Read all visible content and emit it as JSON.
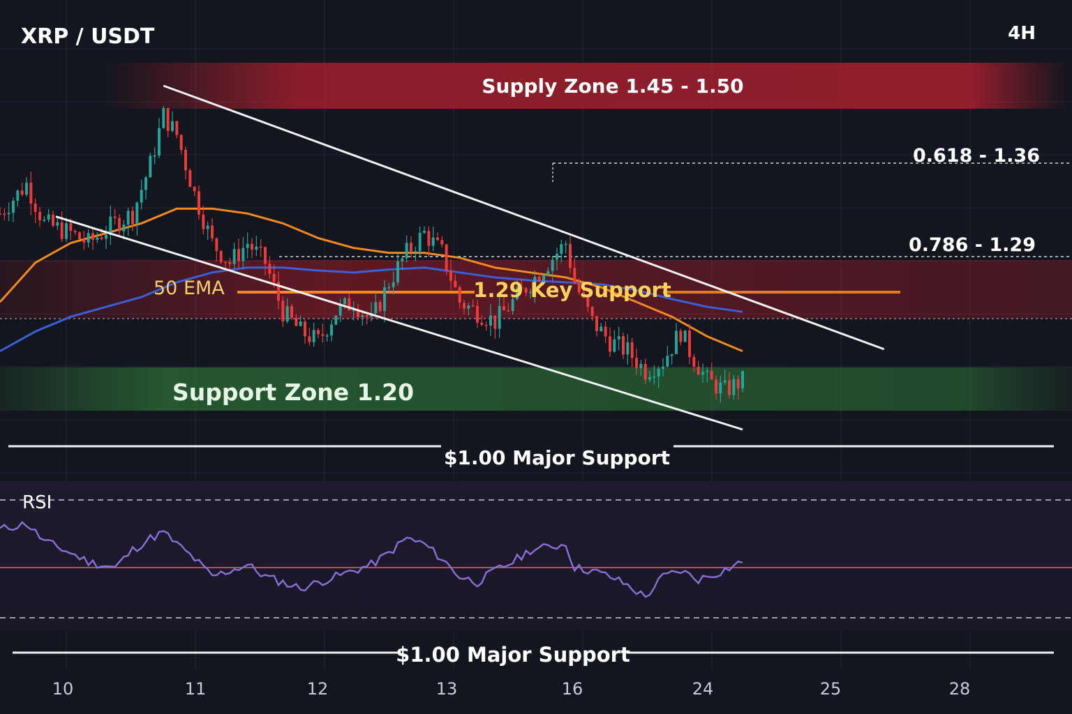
{
  "header": {
    "symbol": "XRP / USDT",
    "timeframe": "4H"
  },
  "colors": {
    "background": "#14161f",
    "bull_candle": "#26a69a",
    "bear_candle": "#ef3b3b",
    "ema_orange": "#f28a1d",
    "ema_blue": "#3b5fd9",
    "supply_zone": "#b0202e",
    "support_zone": "#2f7a3a",
    "rsi_line": "#8a6fd6",
    "rsi_mid": "#c5455a"
  },
  "annotations": {
    "supply_zone": "Supply Zone 1.45 - 1.50",
    "fib_618": "0.618 - 1.36",
    "fib_786": "0.786 - 1.29",
    "ema_label": "50 EMA",
    "key_support": "1.29 Key Support",
    "support_zone": "Support Zone  1.20",
    "major_support": "$1.00 Major Support",
    "rsi_title": "RSI",
    "rsi_major_support": "$1.00 Major Support"
  },
  "chart_data": {
    "type": "candlestick",
    "title": "XRP / USDT",
    "timeframe": "4H",
    "x_tick_labels": [
      "10",
      "11",
      "12",
      "13",
      "16",
      "24",
      "25",
      "28"
    ],
    "levels": {
      "supply_zone": [
        1.45,
        1.5
      ],
      "fib_0_618": 1.36,
      "fib_0_786": 1.29,
      "key_support": 1.29,
      "support_zone": 1.2,
      "major_support": 1.0
    },
    "ylim": [
      1.0,
      1.52
    ],
    "close_path": [
      [
        0,
        1.37
      ],
      [
        6,
        1.4
      ],
      [
        10,
        1.36
      ],
      [
        16,
        1.35
      ],
      [
        20,
        1.34
      ],
      [
        26,
        1.36
      ],
      [
        30,
        1.37
      ],
      [
        34,
        1.42
      ],
      [
        37,
        1.47
      ],
      [
        40,
        1.45
      ],
      [
        44,
        1.39
      ],
      [
        48,
        1.34
      ],
      [
        52,
        1.32
      ],
      [
        56,
        1.34
      ],
      [
        60,
        1.32
      ],
      [
        64,
        1.27
      ],
      [
        68,
        1.25
      ],
      [
        72,
        1.24
      ],
      [
        76,
        1.27
      ],
      [
        80,
        1.28
      ],
      [
        84,
        1.26
      ],
      [
        88,
        1.3
      ],
      [
        92,
        1.33
      ],
      [
        96,
        1.35
      ],
      [
        100,
        1.33
      ],
      [
        104,
        1.28
      ],
      [
        108,
        1.27
      ],
      [
        112,
        1.26
      ],
      [
        116,
        1.28
      ],
      [
        120,
        1.3
      ],
      [
        124,
        1.32
      ],
      [
        128,
        1.34
      ],
      [
        130,
        1.3
      ],
      [
        134,
        1.26
      ],
      [
        138,
        1.24
      ],
      [
        142,
        1.23
      ],
      [
        146,
        1.21
      ],
      [
        150,
        1.22
      ],
      [
        154,
        1.25
      ],
      [
        156,
        1.23
      ],
      [
        160,
        1.2
      ],
      [
        164,
        1.19
      ],
      [
        168,
        1.2
      ]
    ],
    "ema_50": [
      [
        0,
        1.28
      ],
      [
        8,
        1.32
      ],
      [
        16,
        1.34
      ],
      [
        24,
        1.35
      ],
      [
        32,
        1.36
      ],
      [
        40,
        1.375
      ],
      [
        48,
        1.375
      ],
      [
        56,
        1.37
      ],
      [
        64,
        1.36
      ],
      [
        72,
        1.345
      ],
      [
        80,
        1.335
      ],
      [
        88,
        1.33
      ],
      [
        96,
        1.33
      ],
      [
        104,
        1.325
      ],
      [
        112,
        1.315
      ],
      [
        120,
        1.31
      ],
      [
        128,
        1.305
      ],
      [
        136,
        1.295
      ],
      [
        144,
        1.28
      ],
      [
        152,
        1.265
      ],
      [
        160,
        1.245
      ],
      [
        168,
        1.23
      ]
    ],
    "ema_blue": [
      [
        0,
        1.23
      ],
      [
        8,
        1.25
      ],
      [
        16,
        1.265
      ],
      [
        24,
        1.275
      ],
      [
        32,
        1.285
      ],
      [
        40,
        1.3
      ],
      [
        48,
        1.31
      ],
      [
        56,
        1.315
      ],
      [
        64,
        1.315
      ],
      [
        72,
        1.312
      ],
      [
        80,
        1.31
      ],
      [
        88,
        1.313
      ],
      [
        96,
        1.315
      ],
      [
        104,
        1.31
      ],
      [
        112,
        1.305
      ],
      [
        120,
        1.302
      ],
      [
        128,
        1.3
      ],
      [
        136,
        1.298
      ],
      [
        144,
        1.292
      ],
      [
        152,
        1.283
      ],
      [
        160,
        1.275
      ],
      [
        168,
        1.27
      ]
    ],
    "channel_upper": [
      [
        37,
        1.5
      ],
      [
        200,
        1.232
      ]
    ],
    "channel_lower": [
      [
        12,
        1.335
      ],
      [
        168,
        1.055
      ]
    ],
    "rsi": {
      "midline": 50,
      "upper_dashed": 70,
      "lower_dashed": 30,
      "values": [
        [
          0,
          60
        ],
        [
          6,
          62
        ],
        [
          10,
          56
        ],
        [
          16,
          52
        ],
        [
          20,
          49
        ],
        [
          26,
          47
        ],
        [
          30,
          53
        ],
        [
          34,
          57
        ],
        [
          37,
          59
        ],
        [
          40,
          55
        ],
        [
          44,
          50
        ],
        [
          48,
          44
        ],
        [
          52,
          46
        ],
        [
          56,
          48
        ],
        [
          60,
          44
        ],
        [
          64,
          42
        ],
        [
          68,
          40
        ],
        [
          72,
          42
        ],
        [
          76,
          44
        ],
        [
          80,
          46
        ],
        [
          84,
          48
        ],
        [
          88,
          52
        ],
        [
          92,
          57
        ],
        [
          96,
          55
        ],
        [
          100,
          50
        ],
        [
          104,
          44
        ],
        [
          108,
          42
        ],
        [
          112,
          46
        ],
        [
          116,
          49
        ],
        [
          120,
          53
        ],
        [
          124,
          54
        ],
        [
          128,
          55
        ],
        [
          130,
          47
        ],
        [
          134,
          46
        ],
        [
          138,
          44
        ],
        [
          142,
          41
        ],
        [
          146,
          37
        ],
        [
          150,
          44
        ],
        [
          154,
          46
        ],
        [
          158,
          43
        ],
        [
          162,
          45
        ],
        [
          168,
          49
        ]
      ]
    }
  }
}
